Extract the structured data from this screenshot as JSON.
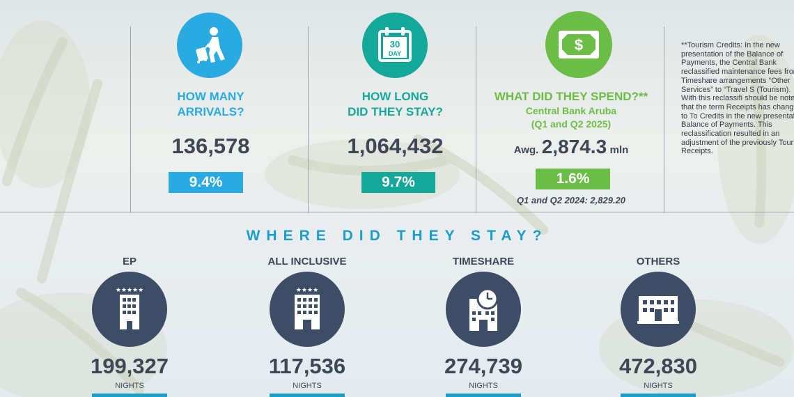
{
  "arrivals": {
    "icon": "traveler-with-luggage-icon",
    "question_line1": "HOW MANY",
    "question_line2": "ARRIVALS?",
    "value": "136,578",
    "change": "9.4%"
  },
  "stay_length": {
    "icon": "calendar-30-day-icon",
    "calendar_number": "30",
    "calendar_word": "DAY",
    "question_line1": "HOW LONG",
    "question_line2": "DID THEY STAY?",
    "value": "1,064,432",
    "change": "9.7%"
  },
  "spend": {
    "icon": "dollar-bill-icon",
    "dollar_sign": "$",
    "question": "WHAT DID THEY SPEND?**",
    "source": "Central Bank Aruba",
    "period": "(Q1 and Q2 2025)",
    "avg_prefix": "Awg.",
    "value": "2,874.3",
    "unit": "mln",
    "change": "1.6%",
    "previous": "Q1 and Q2 2024: 2,829.20"
  },
  "footnote": "**Tourism Credits: In the new presentation of the Balance of Payments, the Central Bank reclassified maintenance fees from Timeshare arrangements “Other Services” to “Travel S (Tourism). With this reclassifi should be noted that the term Receipts has changed to To Credits in the new presentati Balance of Payments. This reclassification resulted in an adjustment of the previously Tourism Receipts.",
  "where_title": "WHERE DID THEY STAY?",
  "accommodations": [
    {
      "label": "EP",
      "icon": "hotel-five-star-icon",
      "value": "199,327",
      "unit": "NIGHTS"
    },
    {
      "label": "ALL INCLUSIVE",
      "icon": "hotel-four-star-icon",
      "value": "117,536",
      "unit": "NIGHTS"
    },
    {
      "label": "TIMESHARE",
      "icon": "timeshare-building-clock-icon",
      "value": "274,739",
      "unit": "NIGHTS"
    },
    {
      "label": "OTHERS",
      "icon": "apartment-building-icon",
      "value": "472,830",
      "unit": "NIGHTS"
    }
  ],
  "colors": {
    "blue": "#29abe2",
    "teal": "#14a89a",
    "green": "#6cbd45",
    "navy": "#3d4d66",
    "text_dark": "#3d4756"
  }
}
